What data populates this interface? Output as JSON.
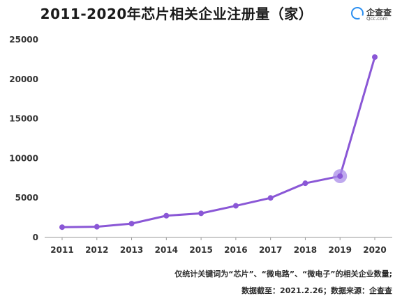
{
  "header": {
    "title": "2011-2020年芯片相关企业注册量（家）"
  },
  "brand": {
    "icon": "qcc-ring-icon",
    "name": "企查查",
    "domain": "Qcc.com"
  },
  "colors": {
    "line": "#8a57d6",
    "marker": "#8a57d6",
    "highlight": "#a98ce8",
    "axis": "#999999"
  },
  "chart_data": {
    "type": "line",
    "title": "2011-2020年芯片相关企业注册量（家）",
    "xlabel": "",
    "ylabel": "",
    "categories": [
      "2011",
      "2012",
      "2013",
      "2014",
      "2015",
      "2016",
      "2017",
      "2018",
      "2019",
      "2020"
    ],
    "values": [
      1300,
      1350,
      1750,
      2750,
      3050,
      4000,
      5000,
      6850,
      7750,
      22800
    ],
    "ylim": [
      0,
      25000
    ],
    "yticks": [
      0,
      5000,
      10000,
      15000,
      20000,
      25000
    ],
    "grid": false,
    "highlight_category": "2019"
  },
  "footnotes": {
    "line1": "仅统计关键词为“芯片”、“微电路”、“微电子”的相关企业数量;",
    "line2": "数据截至：2021.2.26；数据来源：企查查"
  }
}
